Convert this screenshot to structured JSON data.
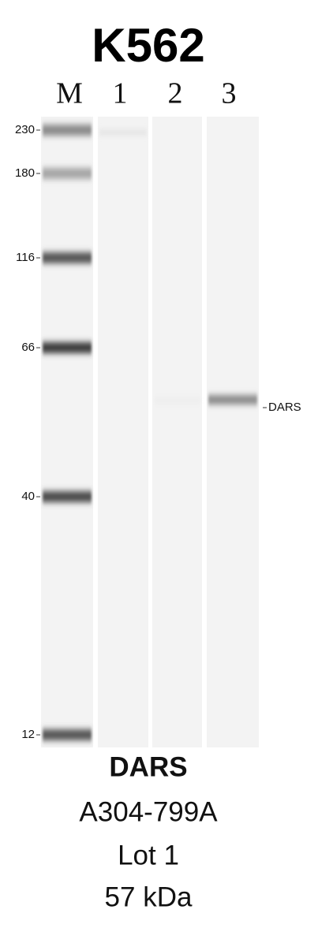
{
  "title": "K562",
  "lanes": [
    "M",
    "1",
    "2",
    "3"
  ],
  "markers": [
    "230",
    "180",
    "116",
    "66",
    "40",
    "12"
  ],
  "band_label": "DARS",
  "caption": [
    "DARS",
    "A304-799A",
    "Lot 1",
    "57 kDa"
  ]
}
